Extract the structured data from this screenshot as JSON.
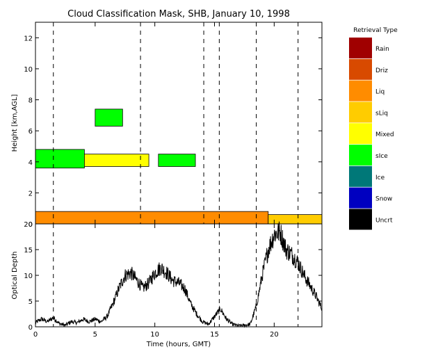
{
  "chart_data": [
    {
      "type": "heatmap",
      "title": "Cloud Classification Mask, SHB, January 10, 1998",
      "ylabel": "Height [km,AGL]",
      "xlim": [
        0,
        24
      ],
      "ylim": [
        0,
        13
      ],
      "yticks": [
        "0",
        "2",
        "4",
        "6",
        "8",
        "10",
        "12"
      ],
      "grid": false,
      "legend": {
        "title": "Retrieval Type",
        "placement": "right",
        "entries": [
          {
            "label": "Rain",
            "color": "#a00000"
          },
          {
            "label": "Driz",
            "color": "#d84a00"
          },
          {
            "label": "Liq",
            "color": "#ff8c00"
          },
          {
            "label": "sLiq",
            "color": "#ffcc00"
          },
          {
            "label": "Mixed",
            "color": "#ffff00"
          },
          {
            "label": "sIce",
            "color": "#00ff00"
          },
          {
            "label": "Ice",
            "color": "#007878"
          },
          {
            "label": "Snow",
            "color": "#0000c0"
          },
          {
            "label": "Uncrt",
            "color": "#000000"
          }
        ]
      },
      "regions": [
        {
          "type": "sIce",
          "x": [
            0.0,
            4.1
          ],
          "y": [
            3.6,
            4.8
          ]
        },
        {
          "type": "Mixed",
          "x": [
            4.1,
            9.5
          ],
          "y": [
            3.7,
            4.5
          ]
        },
        {
          "type": "sIce",
          "x": [
            10.3,
            13.4
          ],
          "y": [
            3.7,
            4.5
          ]
        },
        {
          "type": "sIce",
          "x": [
            5.0,
            7.3
          ],
          "y": [
            6.3,
            7.4
          ]
        },
        {
          "type": "Liq",
          "x": [
            0.0,
            19.5
          ],
          "y": [
            0.0,
            0.8
          ]
        },
        {
          "type": "sLiq",
          "x": [
            19.5,
            24.0
          ],
          "y": [
            0.0,
            0.6
          ]
        }
      ],
      "event_lines": [
        1.5,
        8.8,
        14.1,
        15.4,
        18.5,
        22.0
      ]
    },
    {
      "type": "line",
      "xlabel": "Time (hours, GMT)",
      "ylabel": "Optical Depth",
      "xlim": [
        0,
        24
      ],
      "ylim": [
        0,
        20
      ],
      "xticks": [
        "0",
        "5",
        "10",
        "15",
        "20"
      ],
      "yticks": [
        "0",
        "5",
        "10",
        "15",
        "20"
      ],
      "x": [
        0,
        0.5,
        1,
        1.5,
        2,
        2.5,
        3,
        3.5,
        4,
        4.5,
        5,
        5.5,
        6,
        6.5,
        7,
        7.5,
        8,
        8.5,
        9,
        9.5,
        10,
        10.5,
        11,
        11.5,
        12,
        12.5,
        13,
        13.5,
        14,
        14.5,
        15,
        15.5,
        16,
        16.5,
        17,
        17.5,
        18,
        18.5,
        19,
        19.5,
        20,
        20.5,
        21,
        21.5,
        22,
        22.5,
        23,
        23.5,
        24
      ],
      "values": [
        0.8,
        1.5,
        1.0,
        1.8,
        0.6,
        0.3,
        1.0,
        0.8,
        1.5,
        1.0,
        1.5,
        1.0,
        2.0,
        4.5,
        7.5,
        10.0,
        10.5,
        9.0,
        7.5,
        8.5,
        10.5,
        11.5,
        10.5,
        9.0,
        8.5,
        7.5,
        4.5,
        2.5,
        1.0,
        0.5,
        2.0,
        3.5,
        1.5,
        0.5,
        0.2,
        0.3,
        0.5,
        4.0,
        10.0,
        15.0,
        18.0,
        18.5,
        15.0,
        14.0,
        12.5,
        10.0,
        8.0,
        6.0,
        3.5
      ],
      "event_lines": [
        1.5,
        15.4,
        18.5,
        22.0
      ]
    }
  ]
}
